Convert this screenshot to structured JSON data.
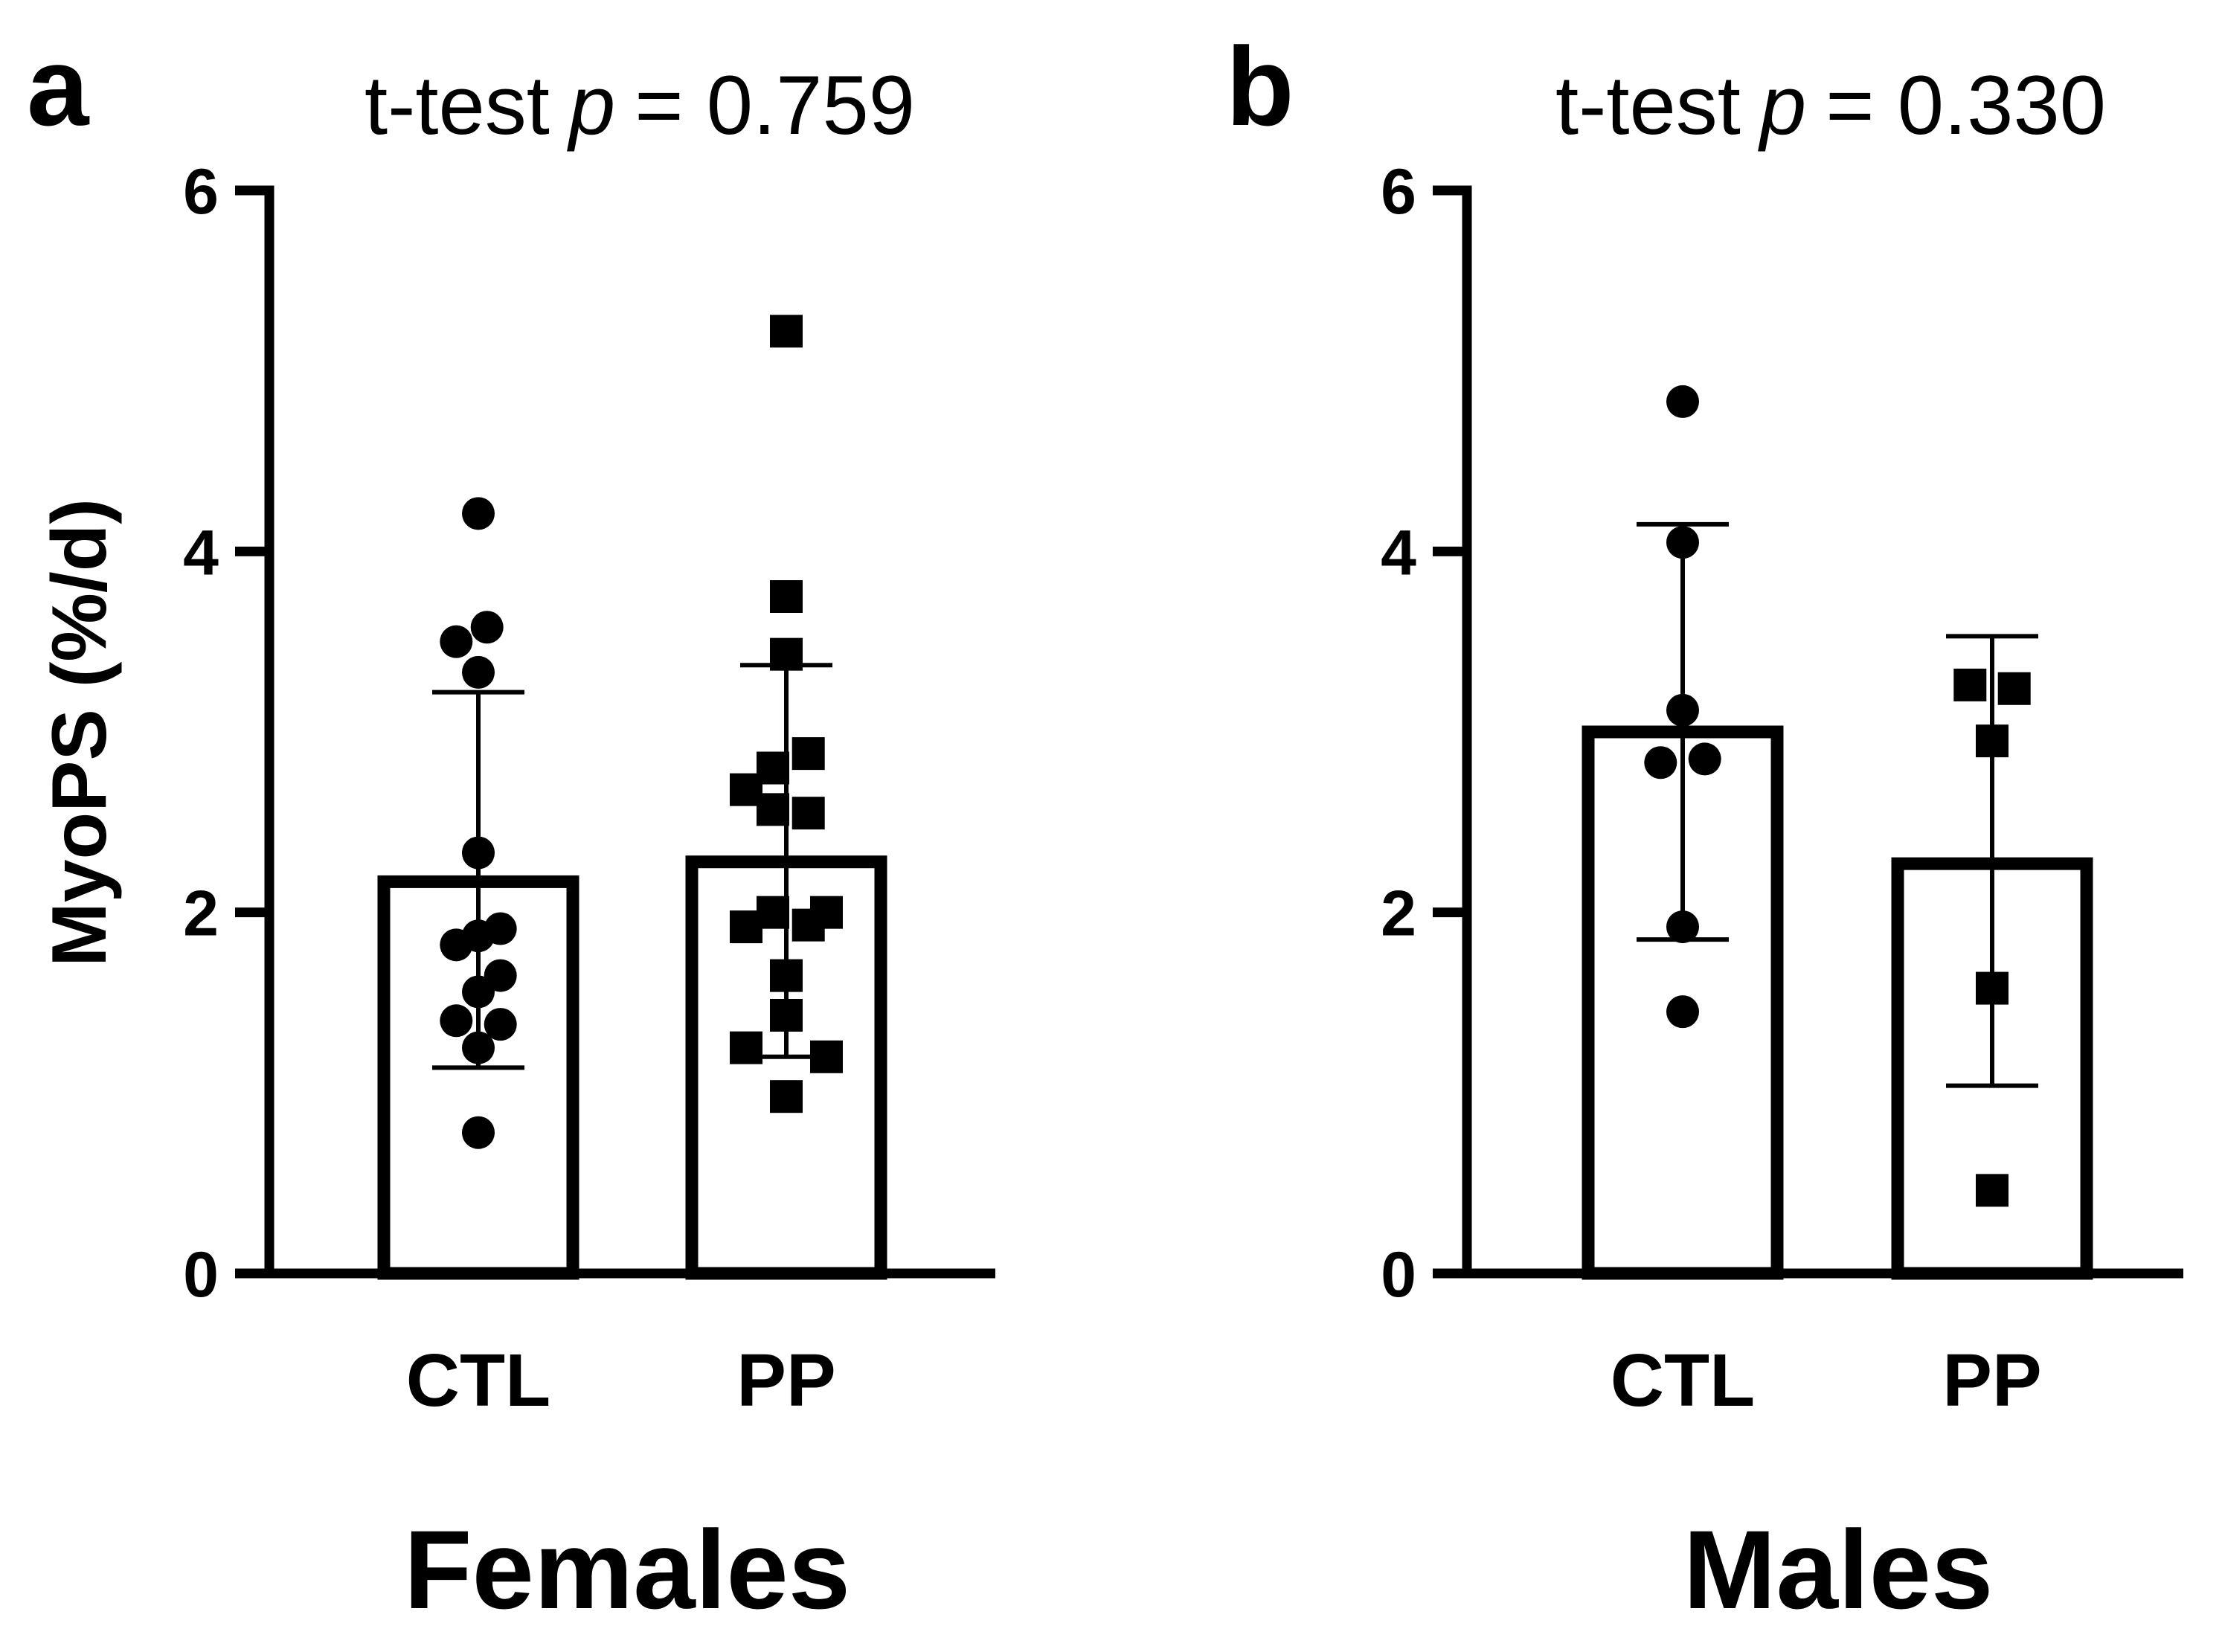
{
  "chart_data": [
    {
      "type": "bar",
      "panel": "a",
      "title_prefix": "t-test",
      "title_p": "p",
      "title_suffix": "= 0.759",
      "xlabel": "Females",
      "ylabel": "MyoPS (%/d)",
      "ylim": [
        0,
        6
      ],
      "yticks": [
        0,
        2,
        4,
        6
      ],
      "categories": [
        "CTL",
        "PP"
      ],
      "series": [
        {
          "name": "CTL",
          "marker": "circle",
          "mean": 2.17,
          "sd_low": 1.14,
          "sd_high": 3.22,
          "points": [
            4.21,
            3.5,
            3.58,
            3.33,
            2.33,
            1.82,
            1.87,
            1.91,
            1.56,
            1.65,
            1.4,
            1.38,
            1.25,
            0.78
          ],
          "jitter": [
            0,
            -0.33,
            0.13,
            0,
            0,
            -0.33,
            0,
            0.33,
            0,
            0.33,
            -0.33,
            0.33,
            0,
            0
          ]
        },
        {
          "name": "PP",
          "marker": "square",
          "mean": 2.28,
          "sd_low": 1.2,
          "sd_high": 3.37,
          "points": [
            5.22,
            3.75,
            3.43,
            2.88,
            2.8,
            2.68,
            2.57,
            2.55,
            2.0,
            1.93,
            1.92,
            2.0,
            1.65,
            1.43,
            1.25,
            1.2,
            0.98
          ],
          "jitter": [
            0,
            0,
            0,
            0.33,
            -0.2,
            -0.6,
            -0.2,
            0.33,
            -0.2,
            0.33,
            -0.6,
            0.6,
            0,
            0,
            -0.6,
            0.6,
            0
          ]
        }
      ]
    },
    {
      "type": "bar",
      "panel": "b",
      "title_prefix": "t-test",
      "title_p": "p",
      "title_suffix": "= 0.330",
      "xlabel": "Males",
      "ylabel": "",
      "ylim": [
        0,
        6
      ],
      "yticks": [
        0,
        2,
        4,
        6
      ],
      "categories": [
        "CTL",
        "PP"
      ],
      "series": [
        {
          "name": "CTL",
          "marker": "circle",
          "mean": 3.0,
          "sd_low": 1.85,
          "sd_high": 4.15,
          "points": [
            4.83,
            4.05,
            3.12,
            2.83,
            2.85,
            1.92,
            1.45
          ],
          "jitter": [
            0,
            0,
            0,
            -0.33,
            0.33,
            0,
            0
          ]
        },
        {
          "name": "PP",
          "marker": "square",
          "mean": 2.27,
          "sd_low": 1.04,
          "sd_high": 3.53,
          "points": [
            3.26,
            3.24,
            2.95,
            1.58,
            0.46
          ],
          "jitter": [
            -0.33,
            0.33,
            0,
            0,
            0
          ]
        }
      ]
    }
  ]
}
